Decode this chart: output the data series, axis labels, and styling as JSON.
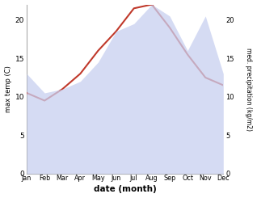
{
  "months": [
    "Jan",
    "Feb",
    "Mar",
    "Apr",
    "May",
    "Jun",
    "Jul",
    "Aug",
    "Sep",
    "Oct",
    "Nov",
    "Dec"
  ],
  "temp": [
    10.5,
    9.5,
    11.0,
    13.0,
    16.0,
    18.5,
    21.5,
    22.0,
    19.0,
    15.5,
    12.5,
    11.5
  ],
  "precip": [
    13.0,
    10.5,
    11.0,
    12.0,
    14.5,
    18.5,
    19.5,
    22.0,
    20.5,
    16.0,
    20.5,
    13.0
  ],
  "temp_color": "#c0392b",
  "precip_fill_color": "#c8d0f0",
  "precip_fill_alpha": 0.75,
  "temp_ylim": [
    0,
    22
  ],
  "precip_ylim": [
    0,
    22
  ],
  "ylabel_left": "max temp (C)",
  "ylabel_right": "med. precipitation (kg/m2)",
  "xlabel": "date (month)",
  "left_yticks": [
    0,
    5,
    10,
    15,
    20
  ],
  "right_yticks": [
    0,
    5,
    10,
    15,
    20
  ],
  "figsize": [
    3.18,
    2.45
  ],
  "dpi": 100,
  "bg_color": "#ffffff",
  "spine_color": "#aaaaaa"
}
